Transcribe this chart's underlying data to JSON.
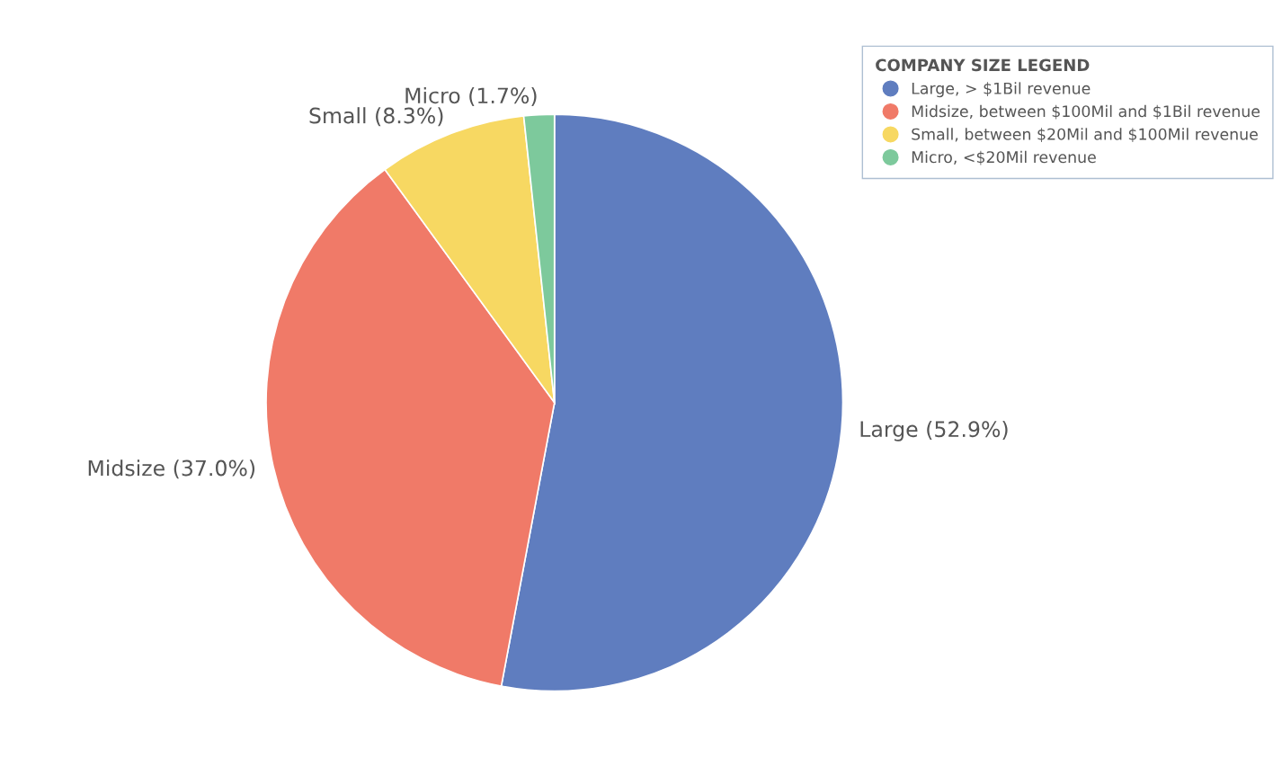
{
  "chart_data": {
    "type": "pie",
    "categories": [
      "Large, > $1Bil revenue",
      "Midsize, between $100Mil and $1Bil revenue",
      "Small, between $20Mil and $100Mil revenue",
      "Micro, <$20Mil revenue"
    ],
    "values": [
      52.9,
      37.0,
      8.3,
      1.7
    ],
    "value_labels": [
      "Large (52.9%)",
      "Midsize (37.0%)",
      "Small (8.3%)",
      "Micro (1.7%)"
    ],
    "colors": [
      "#5f7dbf",
      "#f07a68",
      "#f7d862",
      "#7dc99c"
    ],
    "legend_title": "COMPANY SIZE LEGEND",
    "legend": "top right"
  }
}
